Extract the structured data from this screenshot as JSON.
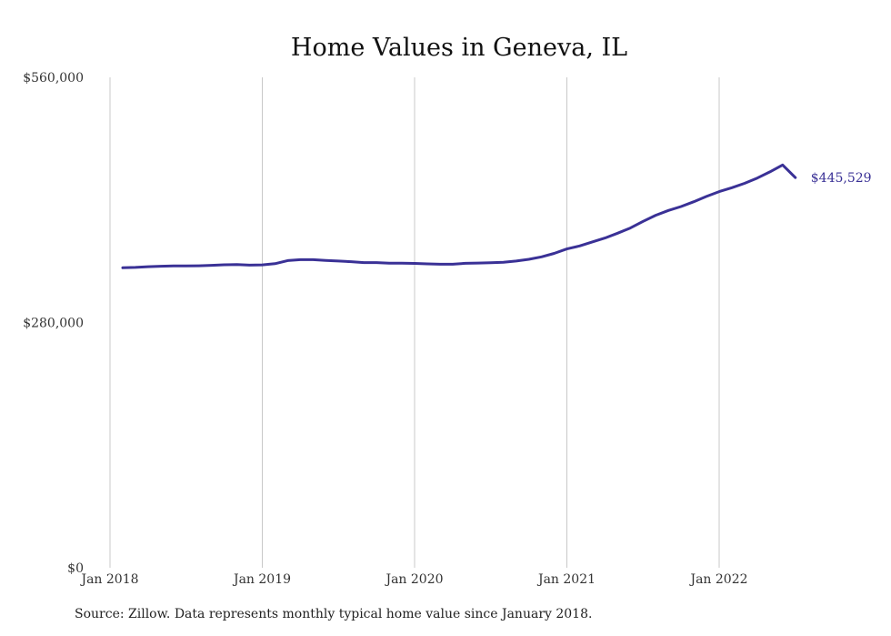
{
  "colors": {
    "line": "#3a3196",
    "gridline": "#c8c8c8",
    "background": "#ffffff"
  },
  "source_note": "Source: Zillow. Data represents monthly typical home value since January 2018.",
  "chart_data": {
    "type": "line",
    "title": "Home Values in Geneva, IL",
    "xlabel": "",
    "ylabel": "",
    "ylim": [
      0,
      560000
    ],
    "yticks": [
      {
        "value": 0,
        "label": "$0"
      },
      {
        "value": 280000,
        "label": "$280,000"
      },
      {
        "value": 560000,
        "label": "$560,000"
      }
    ],
    "xticks": [
      {
        "date": "2018-01",
        "label": "Jan 2018"
      },
      {
        "date": "2019-01",
        "label": "Jan 2019"
      },
      {
        "date": "2020-01",
        "label": "Jan 2020"
      },
      {
        "date": "2021-01",
        "label": "Jan 2021"
      },
      {
        "date": "2022-01",
        "label": "Jan 2022"
      }
    ],
    "grid": {
      "vertical": true,
      "horizontal": false
    },
    "end_label": "$445,529",
    "series": [
      {
        "x": [
          "2018-02",
          "2018-03",
          "2018-04",
          "2018-05",
          "2018-06",
          "2018-07",
          "2018-08",
          "2018-09",
          "2018-10",
          "2018-11",
          "2018-12",
          "2019-01",
          "2019-02",
          "2019-03",
          "2019-04",
          "2019-05",
          "2019-06",
          "2019-07",
          "2019-08",
          "2019-09",
          "2019-10",
          "2019-11",
          "2019-12",
          "2020-01",
          "2020-02",
          "2020-03",
          "2020-04",
          "2020-05",
          "2020-06",
          "2020-07",
          "2020-08",
          "2020-09",
          "2020-10",
          "2020-11",
          "2020-12",
          "2021-01",
          "2021-02",
          "2021-03",
          "2021-04",
          "2021-05",
          "2021-06",
          "2021-07",
          "2021-08",
          "2021-09",
          "2021-10",
          "2021-11",
          "2021-12",
          "2022-01",
          "2022-02",
          "2022-03",
          "2022-04",
          "2022-05",
          "2022-06",
          "2022-07"
        ],
        "values": [
          342500,
          343000,
          343800,
          344300,
          344600,
          344600,
          344800,
          345300,
          346000,
          346300,
          345600,
          345900,
          347200,
          350800,
          351800,
          351800,
          351000,
          350200,
          349500,
          348500,
          348500,
          347800,
          347800,
          347500,
          347000,
          346600,
          346600,
          347600,
          348000,
          348300,
          348800,
          350200,
          352200,
          355000,
          359000,
          364000,
          367500,
          372000,
          376500,
          382000,
          388000,
          395500,
          402500,
          408000,
          412500,
          418000,
          424000,
          429500,
          434000,
          439000,
          445000,
          452000,
          460000,
          445529
        ]
      }
    ]
  }
}
